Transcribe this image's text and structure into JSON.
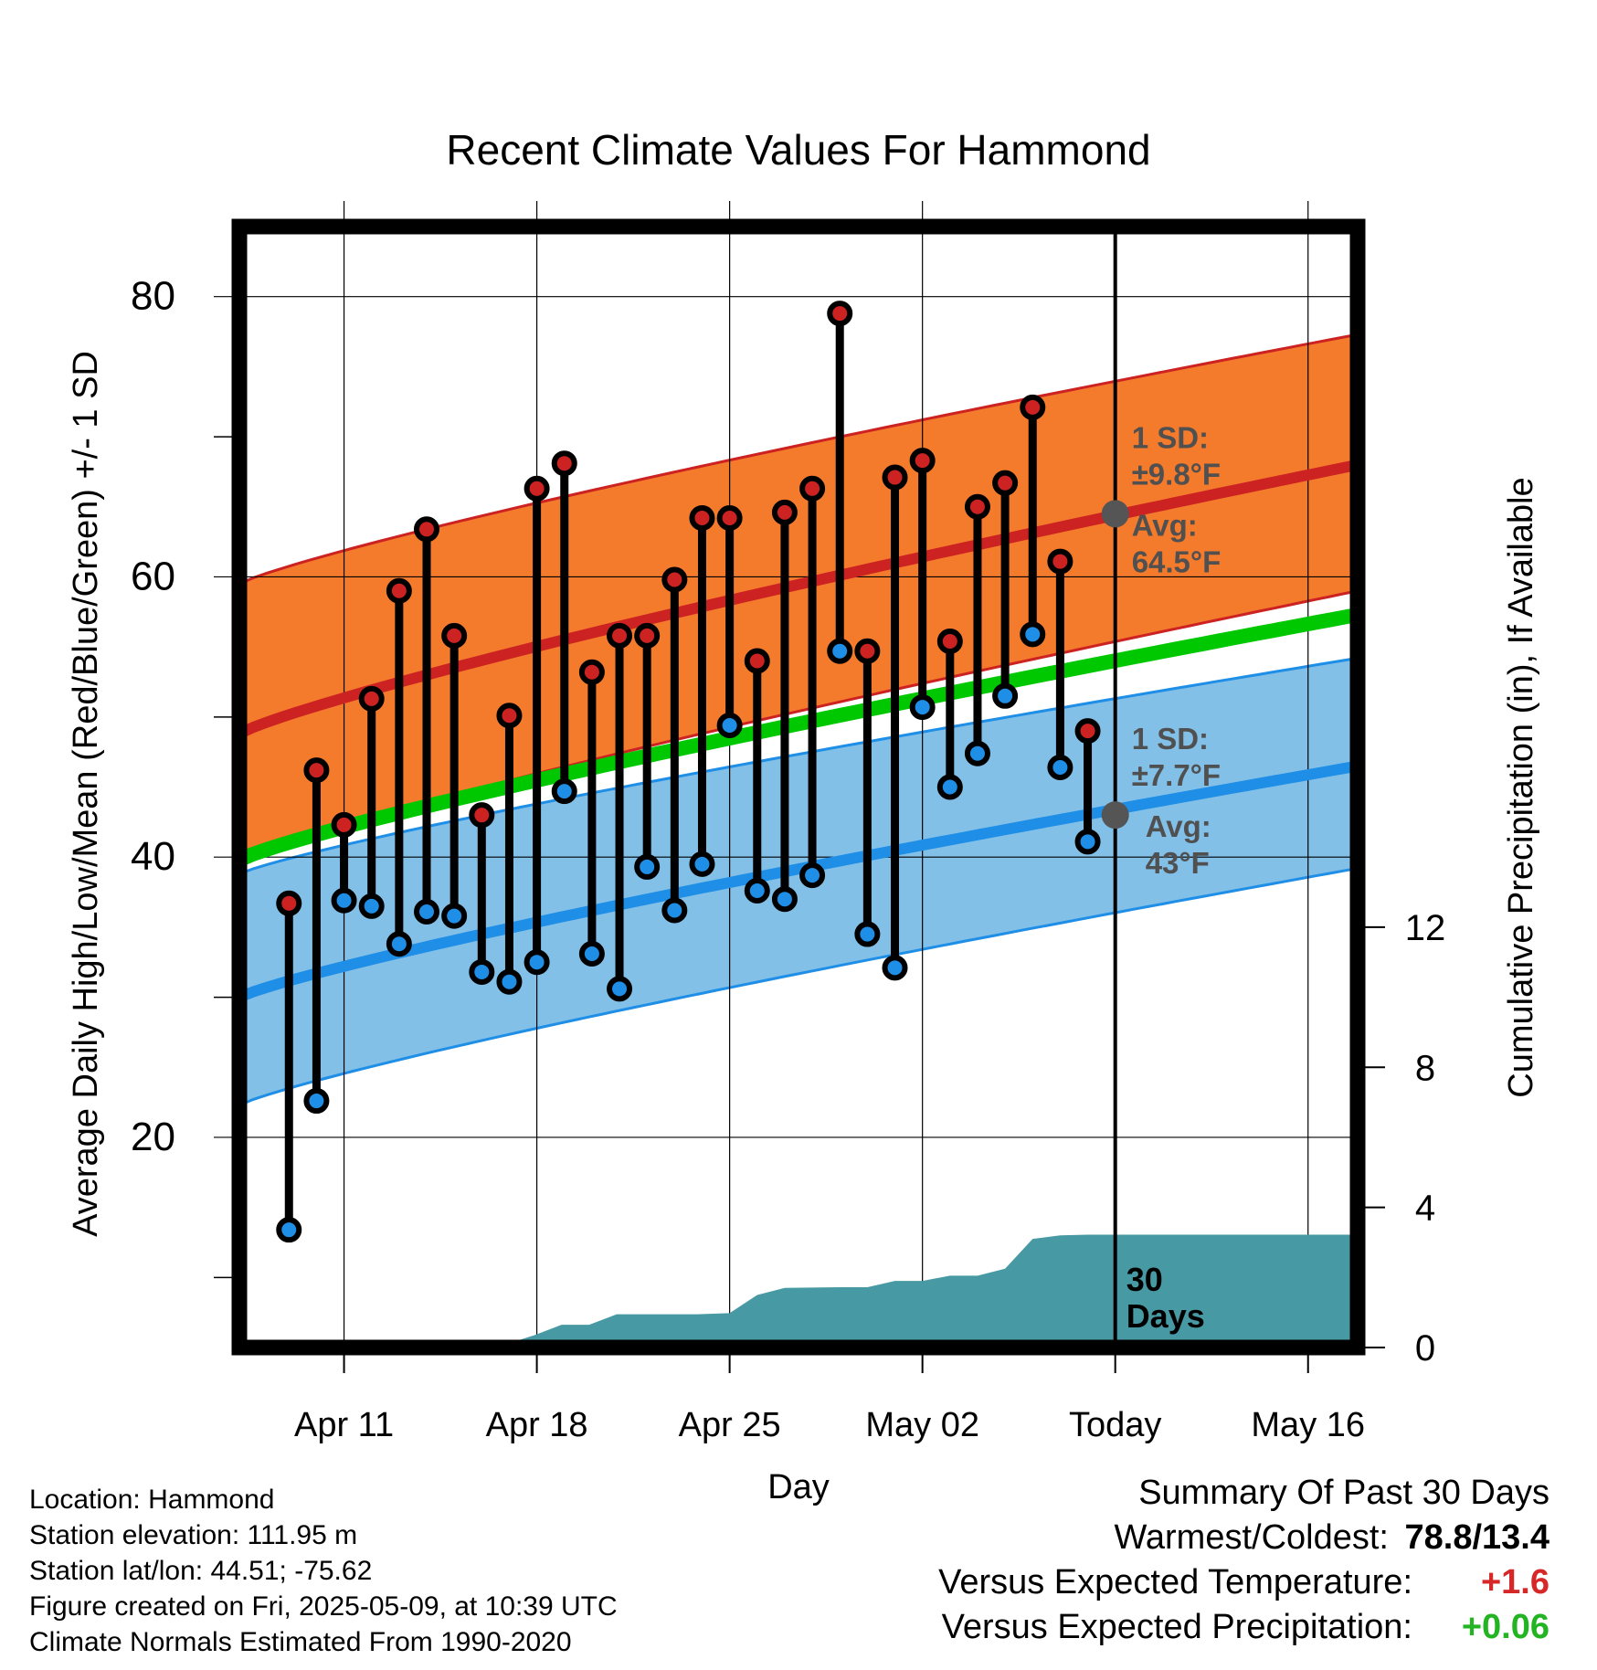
{
  "chart_data": {
    "type": "line",
    "title": "Recent Climate Values For Hammond",
    "xlabel": "Day",
    "ylabel_left": "Average Daily High/Low/Mean (Red/Blue/Green) +/- 1 SD",
    "ylabel_right": "Cumulative Precipitation (in), If Available",
    "x_range_days": [
      -3.8,
      36.8
    ],
    "ylim_left": [
      5,
      85
    ],
    "ylim_right": [
      0,
      32
    ],
    "x_ticks": [
      {
        "day": 0,
        "label": "Apr 11"
      },
      {
        "day": 7,
        "label": "Apr 18"
      },
      {
        "day": 14,
        "label": "Apr 25"
      },
      {
        "day": 21,
        "label": "May 02"
      },
      {
        "day": 28,
        "label": "Today"
      },
      {
        "day": 35,
        "label": "May 16"
      }
    ],
    "y_ticks_left": [
      20,
      40,
      60,
      80
    ],
    "y_minor_ticks_left": [
      10,
      30,
      50,
      70
    ],
    "y_ticks_right": [
      0,
      4,
      8,
      12
    ],
    "today_day": 28,
    "period_label": [
      "30",
      "Days"
    ],
    "normal_high": {
      "start": 48.8,
      "end": 68.0
    },
    "normal_high_sd_upper": {
      "start": 59.5,
      "end": 77.3
    },
    "normal_high_sd_lower": {
      "start": 39.7,
      "end": 59.0
    },
    "normal_mean": {
      "start": 39.8,
      "end": 57.3
    },
    "normal_low": {
      "start": 30.0,
      "end": 46.5
    },
    "normal_low_sd_upper": {
      "start": 38.8,
      "end": 54.2
    },
    "normal_low_sd_lower": {
      "start": 22.3,
      "end": 39.2
    },
    "curve_exponent": 0.85,
    "high_annotation": {
      "sd_label": "1 SD:",
      "sd_value": "±9.8°F",
      "avg_label": "Avg:",
      "avg_value": "64.5°F",
      "avg": 64.5
    },
    "low_annotation": {
      "sd_label": "1 SD:",
      "sd_value": "±7.7°F",
      "avg_label": "Avg:",
      "avg_value": "43°F",
      "avg": 43
    },
    "series": [
      {
        "name": "High",
        "color": "#cc2222",
        "x": [
          -2,
          -1,
          0,
          1,
          2,
          3,
          4,
          5,
          6,
          7,
          8,
          9,
          10,
          11,
          12,
          13,
          14,
          15,
          16,
          17,
          18,
          19,
          20,
          21,
          22,
          23,
          24,
          25,
          26,
          27
        ],
        "values": [
          36.7,
          46.2,
          42.3,
          51.3,
          59.0,
          63.4,
          55.8,
          43.0,
          50.1,
          66.3,
          68.1,
          53.2,
          55.8,
          55.8,
          59.8,
          64.2,
          64.2,
          54.0,
          64.6,
          66.3,
          78.8,
          54.7,
          67.1,
          68.3,
          55.4,
          65.0,
          66.7,
          72.1,
          61.1,
          49.0
        ]
      },
      {
        "name": "Low",
        "color": "#1e8ee6",
        "x": [
          -2,
          -1,
          0,
          1,
          2,
          3,
          4,
          5,
          6,
          7,
          8,
          9,
          10,
          11,
          12,
          13,
          14,
          15,
          16,
          17,
          18,
          19,
          20,
          21,
          22,
          23,
          24,
          25,
          26,
          27
        ],
        "values": [
          13.4,
          22.6,
          36.9,
          36.5,
          33.8,
          36.1,
          35.8,
          31.8,
          31.1,
          32.5,
          44.7,
          33.1,
          30.6,
          39.3,
          36.2,
          39.5,
          49.4,
          37.6,
          37.0,
          38.7,
          54.7,
          34.5,
          32.1,
          50.7,
          45.0,
          47.4,
          51.5,
          55.9,
          46.4,
          41.1
        ]
      },
      {
        "name": "Cumulative Precipitation",
        "color": "#4799a3",
        "x": [
          -3.8,
          2.9,
          4.0,
          5.9,
          6.9,
          7.9,
          8.9,
          9.9,
          10.9,
          12.8,
          14.0,
          15.0,
          16.0,
          18.0,
          19.0,
          20.0,
          21.0,
          22.0,
          23.0,
          24.0,
          25.0,
          26.0,
          27.0,
          36.8
        ],
        "values": [
          0.0,
          0.0,
          0.1,
          0.1,
          0.35,
          0.65,
          0.65,
          0.95,
          0.95,
          0.95,
          0.98,
          1.5,
          1.7,
          1.72,
          1.72,
          1.9,
          1.9,
          2.05,
          2.05,
          2.25,
          3.1,
          3.2,
          3.22,
          3.22
        ]
      }
    ]
  },
  "footer": {
    "location": "Location: Hammond",
    "elevation": "Station elevation: 111.95 m",
    "latlon": "Station lat/lon: 44.51; -75.62",
    "created": "Figure created on Fri, 2025-05-09, at 10:39 UTC",
    "normals": "Climate Normals Estimated From 1990-2020"
  },
  "summary": {
    "title": "Summary Of Past 30 Days",
    "warmest_coldest_label": "Warmest/Coldest:",
    "warmest_coldest_value": "78.8/13.4",
    "temp_label": "Versus Expected Temperature:",
    "temp_value": "+1.6",
    "precip_label": "Versus Expected Precipitation:",
    "precip_value": "+0.06"
  },
  "colors": {
    "high_band": "#f47a2c",
    "low_band": "#82c0e8",
    "normal_high_line": "#cc2222",
    "normal_low_line": "#1e8ee6",
    "normal_mean_line": "#00c800",
    "precip_fill": "#4799a3",
    "annotation_text": "#505050",
    "annotation_dot": "#555555"
  }
}
